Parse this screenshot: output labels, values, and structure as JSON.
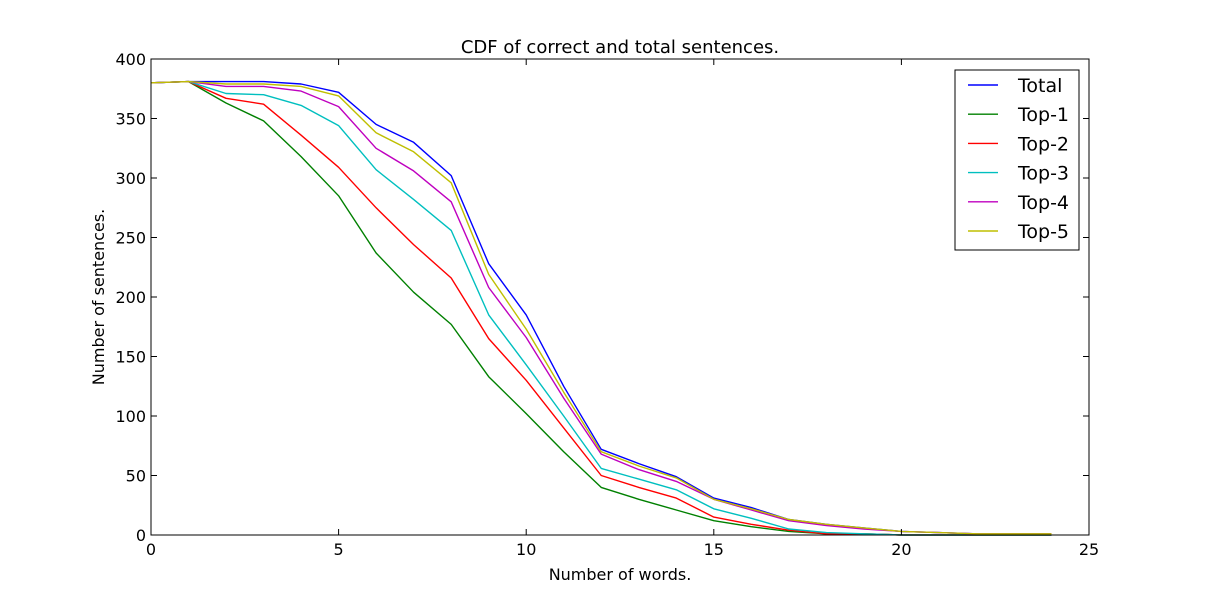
{
  "chart_data": {
    "type": "line",
    "title": "CDF of correct and total sentences.",
    "xlabel": "Number of words.",
    "ylabel": "Number of sentences.",
    "xlim": [
      0,
      25
    ],
    "ylim": [
      0,
      400
    ],
    "xticks": [
      0,
      5,
      10,
      15,
      20,
      25
    ],
    "yticks": [
      0,
      50,
      100,
      150,
      200,
      250,
      300,
      350,
      400
    ],
    "grid": false,
    "legend_position": "top-right",
    "x": [
      0,
      1,
      2,
      3,
      4,
      5,
      6,
      7,
      8,
      9,
      10,
      11,
      12,
      13,
      14,
      15,
      16,
      17,
      18,
      19,
      20,
      21,
      22,
      23,
      24
    ],
    "series": [
      {
        "name": "Total",
        "color": "#0000ff",
        "values": [
          380,
          381,
          381,
          381,
          379,
          372,
          345,
          330,
          302,
          228,
          185,
          125,
          72,
          60,
          49,
          31,
          23,
          13,
          9,
          6,
          3,
          2,
          1,
          1,
          1
        ]
      },
      {
        "name": "Top-1",
        "color": "#008000",
        "values": [
          380,
          381,
          363,
          348,
          318,
          285,
          237,
          204,
          177,
          133,
          102,
          70,
          40,
          30,
          21,
          12,
          7,
          3,
          1,
          1,
          0,
          0,
          0,
          0,
          0
        ]
      },
      {
        "name": "Top-2",
        "color": "#ff0000",
        "values": [
          380,
          381,
          367,
          362,
          336,
          309,
          275,
          244,
          216,
          165,
          130,
          90,
          50,
          40,
          31,
          15,
          9,
          4,
          1,
          1,
          0,
          0,
          0,
          0,
          0
        ]
      },
      {
        "name": "Top-3",
        "color": "#00bfbf",
        "values": [
          380,
          381,
          371,
          370,
          361,
          344,
          307,
          282,
          256,
          185,
          143,
          100,
          56,
          47,
          38,
          22,
          14,
          5,
          2,
          1,
          0,
          0,
          0,
          0,
          0
        ]
      },
      {
        "name": "Top-4",
        "color": "#bf00bf",
        "values": [
          380,
          381,
          377,
          377,
          373,
          360,
          325,
          306,
          280,
          208,
          166,
          115,
          68,
          55,
          45,
          30,
          21,
          12,
          8,
          5,
          3,
          2,
          1,
          1,
          1
        ]
      },
      {
        "name": "Top-5",
        "color": "#bfbf00",
        "values": [
          380,
          381,
          379,
          379,
          377,
          369,
          338,
          322,
          296,
          219,
          173,
          120,
          70,
          58,
          48,
          30,
          22,
          13,
          9,
          6,
          3,
          2,
          1,
          1,
          1
        ]
      }
    ]
  }
}
